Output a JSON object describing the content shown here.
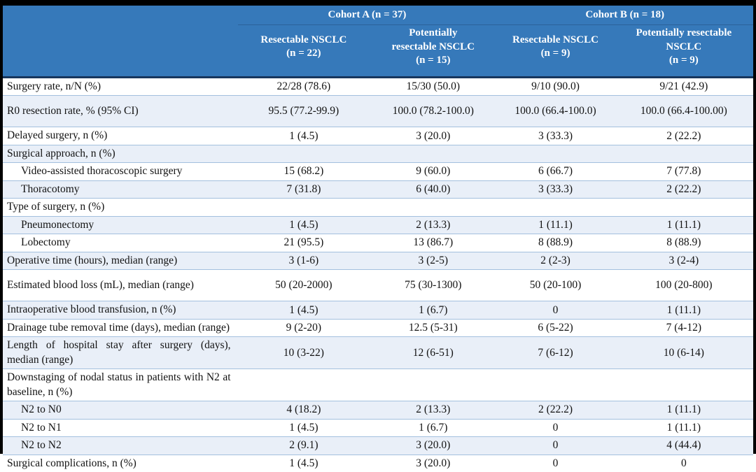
{
  "colors": {
    "header_bg": "#3679ba",
    "header_text": "#ffffff",
    "stripe_bg": "#e9eff8",
    "row_separator": "#a3c0de",
    "header_divider": "#17365d",
    "frame": "#000000",
    "body_text": "#121212"
  },
  "table": {
    "header": {
      "cohort_a": "Cohort A (n = 37)",
      "cohort_b": "Cohort B (n = 18)",
      "columns": [
        "Resectable NSCLC\n(n = 22)",
        "Potentially\nresectable NSCLC\n(n = 15)",
        "Resectable NSCLC\n(n = 9)",
        "Potentially resectable\nNSCLC\n(n = 9)"
      ]
    },
    "rows": [
      {
        "label": "Surgery rate, n/N (%)",
        "indent": false,
        "section": false,
        "tall": false,
        "values": [
          "22/28 (78.6)",
          "15/30 (50.0)",
          "9/10 (90.0)",
          "9/21 (42.9)"
        ]
      },
      {
        "label": "R0 resection rate, % (95% CI)",
        "indent": false,
        "section": false,
        "tall": true,
        "values": [
          "95.5 (77.2-99.9)",
          "100.0 (78.2-100.0)",
          "100.0 (66.4-100.0)",
          "100.0 (66.4-100.00)"
        ]
      },
      {
        "label": "Delayed surgery, n (%)",
        "indent": false,
        "section": false,
        "tall": false,
        "values": [
          "1 (4.5)",
          "3 (20.0)",
          "3 (33.3)",
          "2 (22.2)"
        ]
      },
      {
        "label": "Surgical approach, n (%)",
        "indent": false,
        "section": true,
        "tall": false,
        "values": [
          "",
          "",
          "",
          ""
        ]
      },
      {
        "label": "Video-assisted thoracoscopic surgery",
        "indent": true,
        "section": false,
        "tall": false,
        "values": [
          "15 (68.2)",
          "9 (60.0)",
          "6 (66.7)",
          "7 (77.8)"
        ]
      },
      {
        "label": "Thoracotomy",
        "indent": true,
        "section": false,
        "tall": false,
        "values": [
          "7 (31.8)",
          "6 (40.0)",
          "3 (33.3)",
          "2 (22.2)"
        ]
      },
      {
        "label": "Type of surgery, n (%)",
        "indent": false,
        "section": true,
        "tall": false,
        "values": [
          "",
          "",
          "",
          ""
        ]
      },
      {
        "label": "Pneumonectomy",
        "indent": true,
        "section": false,
        "tall": false,
        "values": [
          "1 (4.5)",
          "2 (13.3)",
          "1 (11.1)",
          "1 (11.1)"
        ]
      },
      {
        "label": "Lobectomy",
        "indent": true,
        "section": false,
        "tall": false,
        "values": [
          "21 (95.5)",
          "13 (86.7)",
          "8 (88.9)",
          "8 (88.9)"
        ]
      },
      {
        "label": "Operative time (hours), median (range)",
        "indent": false,
        "section": false,
        "tall": false,
        "values": [
          "3 (1-6)",
          "3 (2-5)",
          "2 (2-3)",
          "3 (2-4)"
        ]
      },
      {
        "label": "Estimated blood loss (mL), median (range)",
        "indent": false,
        "section": false,
        "tall": true,
        "values": [
          "50 (20-2000)",
          "75 (30-1300)",
          "50 (20-100)",
          "100 (20-800)"
        ]
      },
      {
        "label": "Intraoperative blood transfusion, n (%)",
        "indent": false,
        "section": false,
        "tall": false,
        "values": [
          "1 (4.5)",
          "1 (6.7)",
          "0",
          "1 (11.1)"
        ]
      },
      {
        "label": "Drainage tube removal time (days), median (range)",
        "indent": false,
        "section": false,
        "tall": false,
        "values": [
          "9 (2-20)",
          "12.5 (5-31)",
          "6 (5-22)",
          "7 (4-12)"
        ]
      },
      {
        "label": "Length of hospital stay after surgery (days), median (range)",
        "indent": false,
        "section": false,
        "tall": false,
        "values": [
          "10 (3-22)",
          "12 (6-51)",
          "7 (6-12)",
          "10 (6-14)"
        ]
      },
      {
        "label": "Downstaging of nodal status in patients with N2 at baseline, n (%)",
        "indent": false,
        "section": true,
        "tall": false,
        "values": [
          "",
          "",
          "",
          ""
        ]
      },
      {
        "label": "N2 to N0",
        "indent": true,
        "section": false,
        "tall": false,
        "values": [
          "4 (18.2)",
          "2 (13.3)",
          "2 (22.2)",
          "1 (11.1)"
        ]
      },
      {
        "label": "N2 to N1",
        "indent": true,
        "section": false,
        "tall": false,
        "values": [
          "1 (4.5)",
          "1 (6.7)",
          "0",
          "1 (11.1)"
        ]
      },
      {
        "label": "N2 to N2",
        "indent": true,
        "section": false,
        "tall": false,
        "values": [
          "2 (9.1)",
          "3 (20.0)",
          "0",
          "4 (44.4)"
        ]
      },
      {
        "label": "Surgical complications, n (%)",
        "indent": false,
        "section": false,
        "tall": false,
        "values": [
          "1 (4.5)",
          "3 (20.0)",
          "0",
          "0"
        ]
      }
    ]
  }
}
